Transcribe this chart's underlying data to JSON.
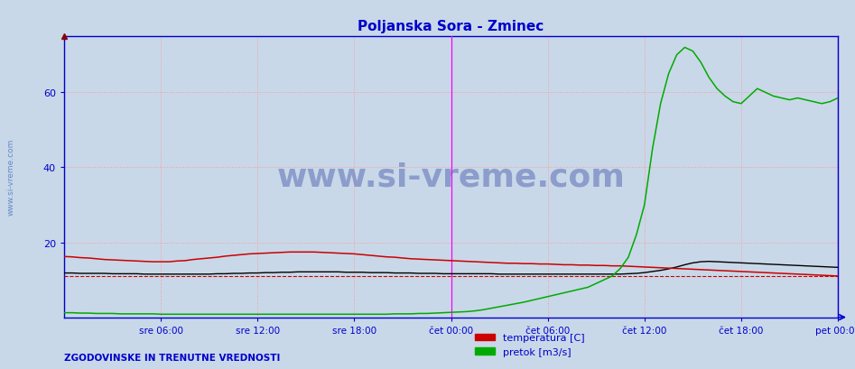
{
  "title": "Poljanska Sora - Zminec",
  "title_color": "#0000cc",
  "bg_color": "#c8d8e8",
  "plot_bg_color": "#c8d8e8",
  "xlim": [
    0,
    576
  ],
  "ylim": [
    0,
    75
  ],
  "yticks": [
    20,
    40,
    60
  ],
  "xtick_labels": [
    "sre 06:00",
    "sre 12:00",
    "sre 18:00",
    "čet 00:00",
    "čet 06:00",
    "čet 12:00",
    "čet 18:00",
    "pet 00:00"
  ],
  "xtick_positions": [
    72,
    144,
    216,
    288,
    360,
    432,
    504,
    576
  ],
  "grid_color": "#ff9999",
  "grid_style": ":",
  "axis_color": "#0000cc",
  "tick_color": "#0000cc",
  "watermark_text": "www.si-vreme.com",
  "watermark_color": "#4455aa",
  "watermark_alpha": 0.45,
  "side_text": "www.si-vreme.com",
  "bottom_left_text": "ZGODOVINSKE IN TRENUTNE VREDNOSTI",
  "bottom_left_color": "#0000cc",
  "legend_items": [
    "temperatura [C]",
    "pretok [m3/s]"
  ],
  "legend_colors": [
    "#cc0000",
    "#00aa00"
  ],
  "vline_positions": [
    288,
    576
  ],
  "vline_color": "#ff00ff",
  "hline_value": 11,
  "hline_color": "#cc0000",
  "hline_style": "--",
  "temp_color": "#cc0000",
  "flow_color": "#00aa00",
  "height_color": "#000000",
  "temp_data_x": [
    0,
    6,
    12,
    18,
    24,
    30,
    36,
    42,
    48,
    54,
    60,
    66,
    72,
    78,
    84,
    90,
    96,
    102,
    108,
    114,
    120,
    126,
    132,
    138,
    144,
    150,
    156,
    162,
    168,
    174,
    180,
    186,
    192,
    198,
    204,
    210,
    216,
    222,
    228,
    234,
    240,
    246,
    252,
    258,
    264,
    270,
    276,
    282,
    288,
    294,
    300,
    306,
    312,
    318,
    324,
    330,
    336,
    342,
    348,
    354,
    360,
    366,
    372,
    378,
    384,
    390,
    396,
    402,
    408,
    414,
    420,
    426,
    432,
    438,
    444,
    450,
    456,
    462,
    468,
    474,
    480,
    486,
    492,
    498,
    504,
    510,
    516,
    522,
    528,
    534,
    540,
    546,
    552,
    558,
    564,
    570,
    576
  ],
  "temp_data_y": [
    16.2,
    16.1,
    15.9,
    15.8,
    15.6,
    15.4,
    15.3,
    15.2,
    15.1,
    15.0,
    14.9,
    14.8,
    14.8,
    14.8,
    15.0,
    15.1,
    15.4,
    15.6,
    15.8,
    16.0,
    16.3,
    16.5,
    16.7,
    16.9,
    17.0,
    17.1,
    17.2,
    17.3,
    17.4,
    17.4,
    17.4,
    17.4,
    17.3,
    17.2,
    17.1,
    17.0,
    16.9,
    16.7,
    16.5,
    16.3,
    16.1,
    16.0,
    15.8,
    15.6,
    15.5,
    15.4,
    15.3,
    15.2,
    15.1,
    15.0,
    14.9,
    14.8,
    14.7,
    14.6,
    14.5,
    14.4,
    14.4,
    14.3,
    14.3,
    14.2,
    14.2,
    14.1,
    14.0,
    14.0,
    13.9,
    13.9,
    13.8,
    13.8,
    13.7,
    13.7,
    13.6,
    13.5,
    13.4,
    13.3,
    13.2,
    13.1,
    13.0,
    12.9,
    12.8,
    12.7,
    12.6,
    12.5,
    12.4,
    12.3,
    12.2,
    12.1,
    12.0,
    11.9,
    11.8,
    11.7,
    11.6,
    11.5,
    11.4,
    11.3,
    11.2,
    11.1,
    11.0
  ],
  "flow_data_x": [
    0,
    6,
    12,
    18,
    24,
    30,
    36,
    42,
    48,
    54,
    60,
    66,
    72,
    78,
    84,
    90,
    96,
    102,
    108,
    114,
    120,
    126,
    132,
    138,
    144,
    150,
    156,
    162,
    168,
    174,
    180,
    186,
    192,
    198,
    204,
    210,
    216,
    222,
    228,
    234,
    240,
    246,
    252,
    258,
    264,
    270,
    276,
    282,
    288,
    294,
    300,
    306,
    312,
    318,
    324,
    330,
    336,
    342,
    348,
    354,
    360,
    366,
    372,
    378,
    384,
    390,
    396,
    402,
    408,
    414,
    420,
    426,
    432,
    438,
    444,
    450,
    456,
    462,
    468,
    474,
    480,
    486,
    492,
    498,
    504,
    510,
    516,
    522,
    528,
    534,
    540,
    546,
    552,
    558,
    564,
    570,
    576
  ],
  "flow_data_y": [
    1.2,
    1.2,
    1.1,
    1.1,
    1.0,
    1.0,
    1.0,
    0.9,
    0.9,
    0.9,
    0.9,
    0.9,
    0.8,
    0.8,
    0.8,
    0.8,
    0.8,
    0.8,
    0.8,
    0.8,
    0.8,
    0.8,
    0.8,
    0.8,
    0.8,
    0.8,
    0.8,
    0.8,
    0.8,
    0.8,
    0.8,
    0.8,
    0.8,
    0.8,
    0.8,
    0.8,
    0.8,
    0.8,
    0.8,
    0.8,
    0.8,
    0.9,
    0.9,
    0.9,
    1.0,
    1.0,
    1.1,
    1.2,
    1.3,
    1.4,
    1.5,
    1.7,
    2.0,
    2.4,
    2.8,
    3.2,
    3.6,
    4.0,
    4.5,
    5.0,
    5.5,
    6.0,
    6.5,
    7.0,
    7.5,
    8.0,
    9.0,
    10.0,
    11.0,
    13.0,
    16.0,
    22.0,
    30.0,
    45.0,
    57.0,
    65.0,
    70.0,
    72.0,
    71.0,
    68.0,
    64.0,
    61.0,
    59.0,
    57.5,
    57.0,
    59.0,
    61.0,
    60.0,
    59.0,
    58.5,
    58.0,
    58.5,
    58.0,
    57.5,
    57.0,
    57.5,
    58.5
  ],
  "height_data_x": [
    0,
    6,
    12,
    18,
    24,
    30,
    36,
    42,
    48,
    54,
    60,
    66,
    72,
    78,
    84,
    90,
    96,
    102,
    108,
    114,
    120,
    126,
    132,
    138,
    144,
    150,
    156,
    162,
    168,
    174,
    180,
    186,
    192,
    198,
    204,
    210,
    216,
    222,
    228,
    234,
    240,
    246,
    252,
    258,
    264,
    270,
    276,
    282,
    288,
    294,
    300,
    306,
    312,
    318,
    324,
    330,
    336,
    342,
    348,
    354,
    360,
    366,
    372,
    378,
    384,
    390,
    396,
    402,
    408,
    414,
    420,
    426,
    432,
    438,
    444,
    450,
    456,
    462,
    468,
    474,
    480,
    486,
    492,
    498,
    504,
    510,
    516,
    522,
    528,
    534,
    540,
    546,
    552,
    558,
    564,
    570,
    576
  ],
  "height_data_y": [
    11.8,
    11.8,
    11.7,
    11.7,
    11.7,
    11.7,
    11.6,
    11.6,
    11.6,
    11.6,
    11.5,
    11.5,
    11.5,
    11.5,
    11.5,
    11.5,
    11.5,
    11.5,
    11.5,
    11.6,
    11.6,
    11.7,
    11.7,
    11.8,
    11.8,
    11.9,
    11.9,
    12.0,
    12.0,
    12.1,
    12.1,
    12.1,
    12.1,
    12.1,
    12.1,
    12.0,
    12.0,
    12.0,
    11.9,
    11.9,
    11.9,
    11.8,
    11.8,
    11.8,
    11.7,
    11.7,
    11.7,
    11.6,
    11.6,
    11.6,
    11.6,
    11.6,
    11.6,
    11.6,
    11.5,
    11.5,
    11.5,
    11.5,
    11.5,
    11.5,
    11.5,
    11.5,
    11.5,
    11.5,
    11.5,
    11.5,
    11.5,
    11.5,
    11.5,
    11.5,
    11.6,
    11.7,
    11.9,
    12.2,
    12.5,
    12.9,
    13.4,
    14.0,
    14.5,
    14.8,
    14.9,
    14.8,
    14.7,
    14.6,
    14.5,
    14.4,
    14.3,
    14.2,
    14.1,
    14.0,
    13.9,
    13.8,
    13.7,
    13.6,
    13.5,
    13.4,
    13.3
  ]
}
